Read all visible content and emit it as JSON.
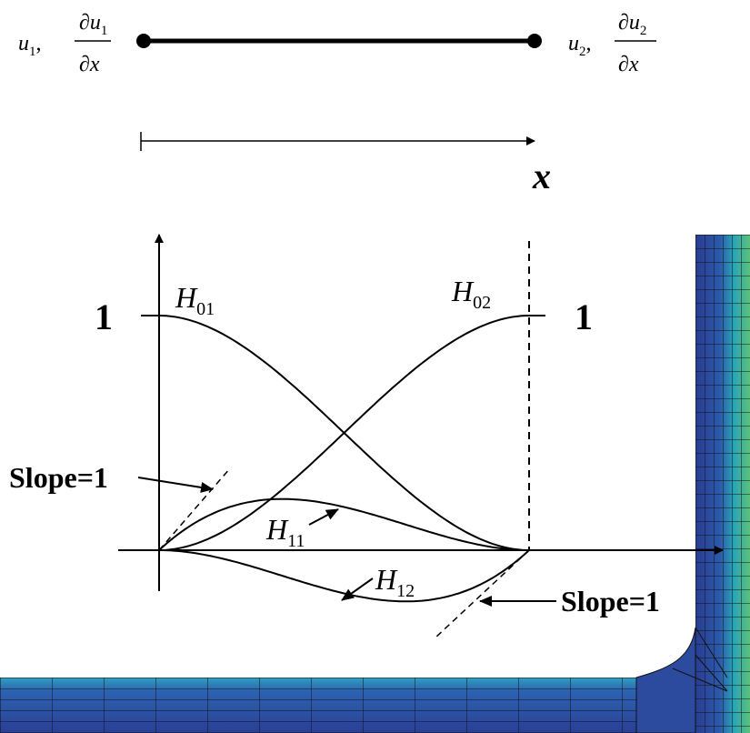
{
  "nodes": [
    {
      "var": "u",
      "sub": "1",
      "sep": ",",
      "num": "∂u",
      "num_sub": "1",
      "den": "∂x"
    },
    {
      "var": "u",
      "sub": "2",
      "sep": ",",
      "num": "∂u",
      "num_sub": "2",
      "den": "∂x"
    }
  ],
  "axis_label": "x",
  "unit_labels": [
    "1",
    "1"
  ],
  "curves": [
    {
      "name": "H",
      "sub": "01"
    },
    {
      "name": "H",
      "sub": "02"
    },
    {
      "name": "H",
      "sub": "11"
    },
    {
      "name": "H",
      "sub": "12"
    }
  ],
  "slope_labels": [
    "Slope=1",
    "Slope=1"
  ]
}
